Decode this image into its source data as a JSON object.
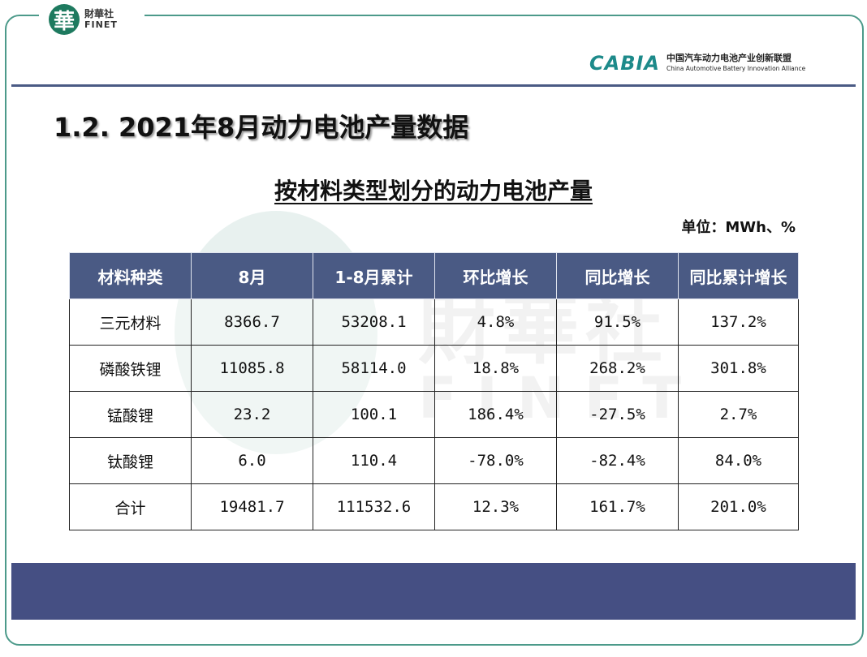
{
  "brand": {
    "finet_mark": "華",
    "finet_cn": "財華社",
    "finet_en": "FINET",
    "cabia_mark": "CABIA",
    "cabia_cn": "中国汽车动力电池产业创新联盟",
    "cabia_en": "China Automotive Battery Innovation Alliance"
  },
  "watermark": {
    "cn": "財華社",
    "en": "FINET"
  },
  "section_title": "1.2.  2021年8月动力电池产量数据",
  "table_title": "按材料类型划分的动力电池产量",
  "unit": "单位：MWh、%",
  "table": {
    "headers": [
      "材料种类",
      "8月",
      "1-8月累计",
      "环比增长",
      "同比增长",
      "同比累计增长"
    ],
    "rows": [
      [
        "三元材料",
        "8366.7",
        "53208.1",
        "4.8%",
        "91.5%",
        "137.2%"
      ],
      [
        "磷酸铁锂",
        "11085.8",
        "58114.0",
        "18.8%",
        "268.2%",
        "301.8%"
      ],
      [
        "锰酸锂",
        "23.2",
        "100.1",
        "186.4%",
        "-27.5%",
        "2.7%"
      ],
      [
        "钛酸锂",
        "6.0",
        "110.4",
        "-78.0%",
        "-82.4%",
        "84.0%"
      ],
      [
        "合计",
        "19481.7",
        "111532.6",
        "12.3%",
        "161.7%",
        "201.0%"
      ]
    ]
  },
  "colors": {
    "header_bg": "#4a5a84",
    "frame": "#4c9a8a",
    "bottom_bar": "#454f83"
  }
}
